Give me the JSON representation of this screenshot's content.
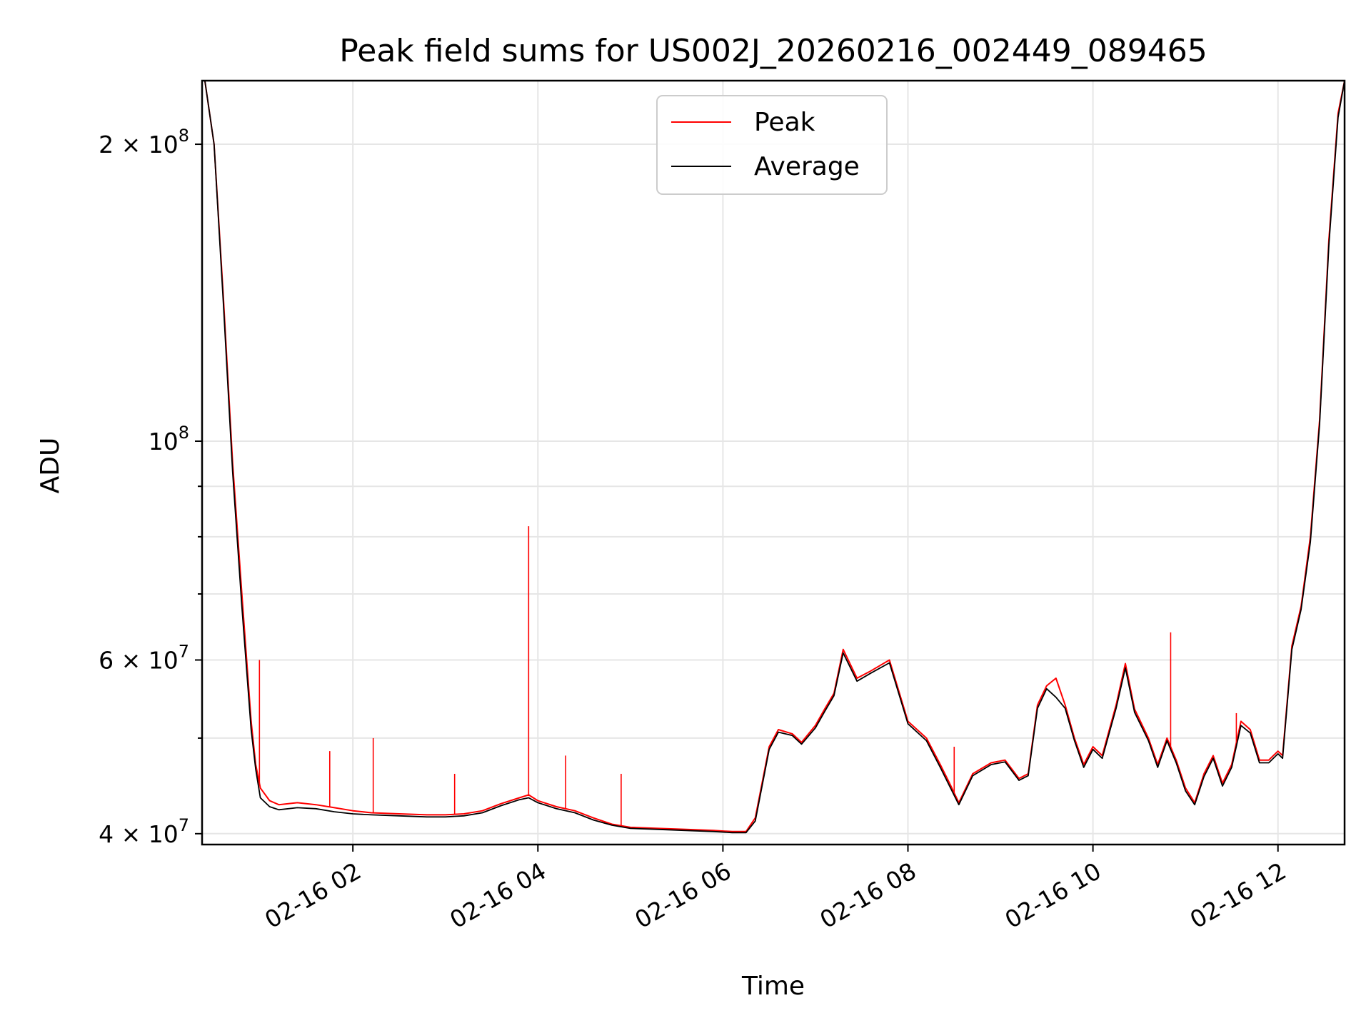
{
  "chart_data": {
    "type": "line",
    "title": "Peak field sums for US002J_20260216_002449_089465",
    "xlabel": "Time",
    "ylabel": "ADU",
    "yscale": "log",
    "xlim": [
      0.37,
      12.72
    ],
    "ylim": [
      39000000,
      232000000
    ],
    "grid": true,
    "legend_position": "top-center",
    "x_ticks": [
      {
        "value": 2,
        "label": "02-16 02"
      },
      {
        "value": 4,
        "label": "02-16 04"
      },
      {
        "value": 6,
        "label": "02-16 06"
      },
      {
        "value": 8,
        "label": "02-16 08"
      },
      {
        "value": 10,
        "label": "02-16 10"
      },
      {
        "value": 12,
        "label": "02-16 12"
      }
    ],
    "y_ticks": [
      {
        "value": 40000000,
        "base": "4",
        "exp": "7"
      },
      {
        "value": 60000000,
        "base": "6",
        "exp": "7"
      },
      {
        "value": 100000000,
        "base": "",
        "exp": "8"
      },
      {
        "value": 200000000,
        "base": "2",
        "exp": "8"
      }
    ],
    "y_minor_ticks": [
      50000000,
      70000000,
      80000000,
      90000000
    ],
    "series": [
      {
        "name": "Peak",
        "color": "#ff0000",
        "x": [
          0.4,
          0.5,
          0.6,
          0.7,
          0.8,
          0.9,
          0.95,
          1.0,
          1.1,
          1.2,
          1.4,
          1.6,
          1.8,
          2.0,
          2.2,
          2.5,
          2.8,
          3.0,
          3.2,
          3.4,
          3.6,
          3.8,
          3.9,
          4.0,
          4.2,
          4.4,
          4.6,
          4.8,
          5.0,
          5.3,
          5.6,
          5.9,
          6.1,
          6.25,
          6.35,
          6.5,
          6.6,
          6.75,
          6.85,
          7.0,
          7.1,
          7.2,
          7.3,
          7.45,
          7.6,
          7.8,
          8.0,
          8.2,
          8.35,
          8.45,
          8.55,
          8.7,
          8.9,
          9.05,
          9.2,
          9.3,
          9.4,
          9.5,
          9.6,
          9.7,
          9.8,
          9.9,
          10.0,
          10.1,
          10.25,
          10.35,
          10.45,
          10.6,
          10.7,
          10.8,
          10.9,
          11.0,
          11.1,
          11.2,
          11.3,
          11.4,
          11.5,
          11.6,
          11.7,
          11.8,
          11.9,
          12.0,
          12.05,
          12.15,
          12.25,
          12.35,
          12.45,
          12.55,
          12.65,
          12.72
        ],
        "y": [
          232000000,
          200000000,
          140000000,
          95000000,
          70000000,
          52000000,
          47000000,
          44500000,
          43200000,
          42800000,
          43000000,
          42800000,
          42500000,
          42200000,
          42000000,
          41900000,
          41800000,
          41800000,
          41900000,
          42200000,
          42900000,
          43500000,
          43800000,
          43200000,
          42600000,
          42200000,
          41500000,
          40900000,
          40600000,
          40500000,
          40400000,
          40300000,
          40200000,
          40200000,
          41500000,
          49000000,
          51000000,
          50500000,
          49500000,
          51500000,
          53500000,
          55500000,
          61500000,
          57500000,
          58500000,
          60000000,
          52000000,
          50000000,
          47000000,
          45000000,
          43000000,
          46000000,
          47200000,
          47500000,
          45500000,
          46000000,
          54000000,
          56500000,
          57500000,
          54000000,
          50000000,
          47000000,
          49000000,
          48000000,
          54000000,
          59500000,
          53500000,
          50000000,
          47000000,
          50000000,
          47500000,
          44500000,
          43000000,
          46000000,
          48000000,
          45000000,
          47000000,
          52000000,
          51000000,
          47500000,
          47500000,
          48500000,
          48000000,
          62000000,
          68000000,
          80000000,
          105000000,
          160000000,
          215000000,
          232000000
        ]
      },
      {
        "name": "Average",
        "color": "#000000",
        "x": [
          0.4,
          0.5,
          0.6,
          0.7,
          0.8,
          0.9,
          0.95,
          1.0,
          1.1,
          1.2,
          1.4,
          1.6,
          1.8,
          2.0,
          2.2,
          2.5,
          2.8,
          3.0,
          3.2,
          3.4,
          3.6,
          3.8,
          3.9,
          4.0,
          4.2,
          4.4,
          4.6,
          4.8,
          5.0,
          5.3,
          5.6,
          5.9,
          6.1,
          6.25,
          6.35,
          6.5,
          6.6,
          6.75,
          6.85,
          7.0,
          7.1,
          7.2,
          7.3,
          7.45,
          7.6,
          7.8,
          8.0,
          8.2,
          8.35,
          8.45,
          8.55,
          8.7,
          8.9,
          9.05,
          9.2,
          9.3,
          9.4,
          9.5,
          9.6,
          9.7,
          9.8,
          9.9,
          10.0,
          10.1,
          10.25,
          10.35,
          10.45,
          10.6,
          10.7,
          10.8,
          10.9,
          11.0,
          11.1,
          11.2,
          11.3,
          11.4,
          11.5,
          11.6,
          11.7,
          11.8,
          11.9,
          12.0,
          12.05,
          12.15,
          12.25,
          12.35,
          12.45,
          12.55,
          12.65,
          12.72
        ],
        "y": [
          232000000,
          200000000,
          138000000,
          93000000,
          68000000,
          51000000,
          46500000,
          43500000,
          42600000,
          42300000,
          42500000,
          42400000,
          42100000,
          41900000,
          41800000,
          41700000,
          41600000,
          41600000,
          41700000,
          42000000,
          42700000,
          43300000,
          43500000,
          43000000,
          42400000,
          42000000,
          41300000,
          40800000,
          40500000,
          40400000,
          40300000,
          40200000,
          40100000,
          40100000,
          41200000,
          48700000,
          50700000,
          50300000,
          49300000,
          51200000,
          53200000,
          55200000,
          61000000,
          57100000,
          58200000,
          59600000,
          51700000,
          49700000,
          46700000,
          44700000,
          42800000,
          45800000,
          47000000,
          47300000,
          45300000,
          45800000,
          53600000,
          56100000,
          55000000,
          53600000,
          49700000,
          46700000,
          48700000,
          47700000,
          53600000,
          58900000,
          53100000,
          49700000,
          46700000,
          49700000,
          47200000,
          44200000,
          42800000,
          45700000,
          47700000,
          44700000,
          46700000,
          51500000,
          50600000,
          47200000,
          47200000,
          48200000,
          47700000,
          61500000,
          67500000,
          79000000,
          104000000,
          158000000,
          213000000,
          232000000
        ]
      }
    ],
    "spikes": [
      {
        "x": 0.99,
        "y": 60000000
      },
      {
        "x": 1.75,
        "y": 48500000
      },
      {
        "x": 2.22,
        "y": 50000000
      },
      {
        "x": 3.1,
        "y": 46000000
      },
      {
        "x": 3.9,
        "y": 82000000
      },
      {
        "x": 4.3,
        "y": 48000000
      },
      {
        "x": 4.9,
        "y": 46000000
      },
      {
        "x": 8.5,
        "y": 49000000
      },
      {
        "x": 10.84,
        "y": 64000000
      },
      {
        "x": 11.55,
        "y": 53000000
      }
    ]
  }
}
